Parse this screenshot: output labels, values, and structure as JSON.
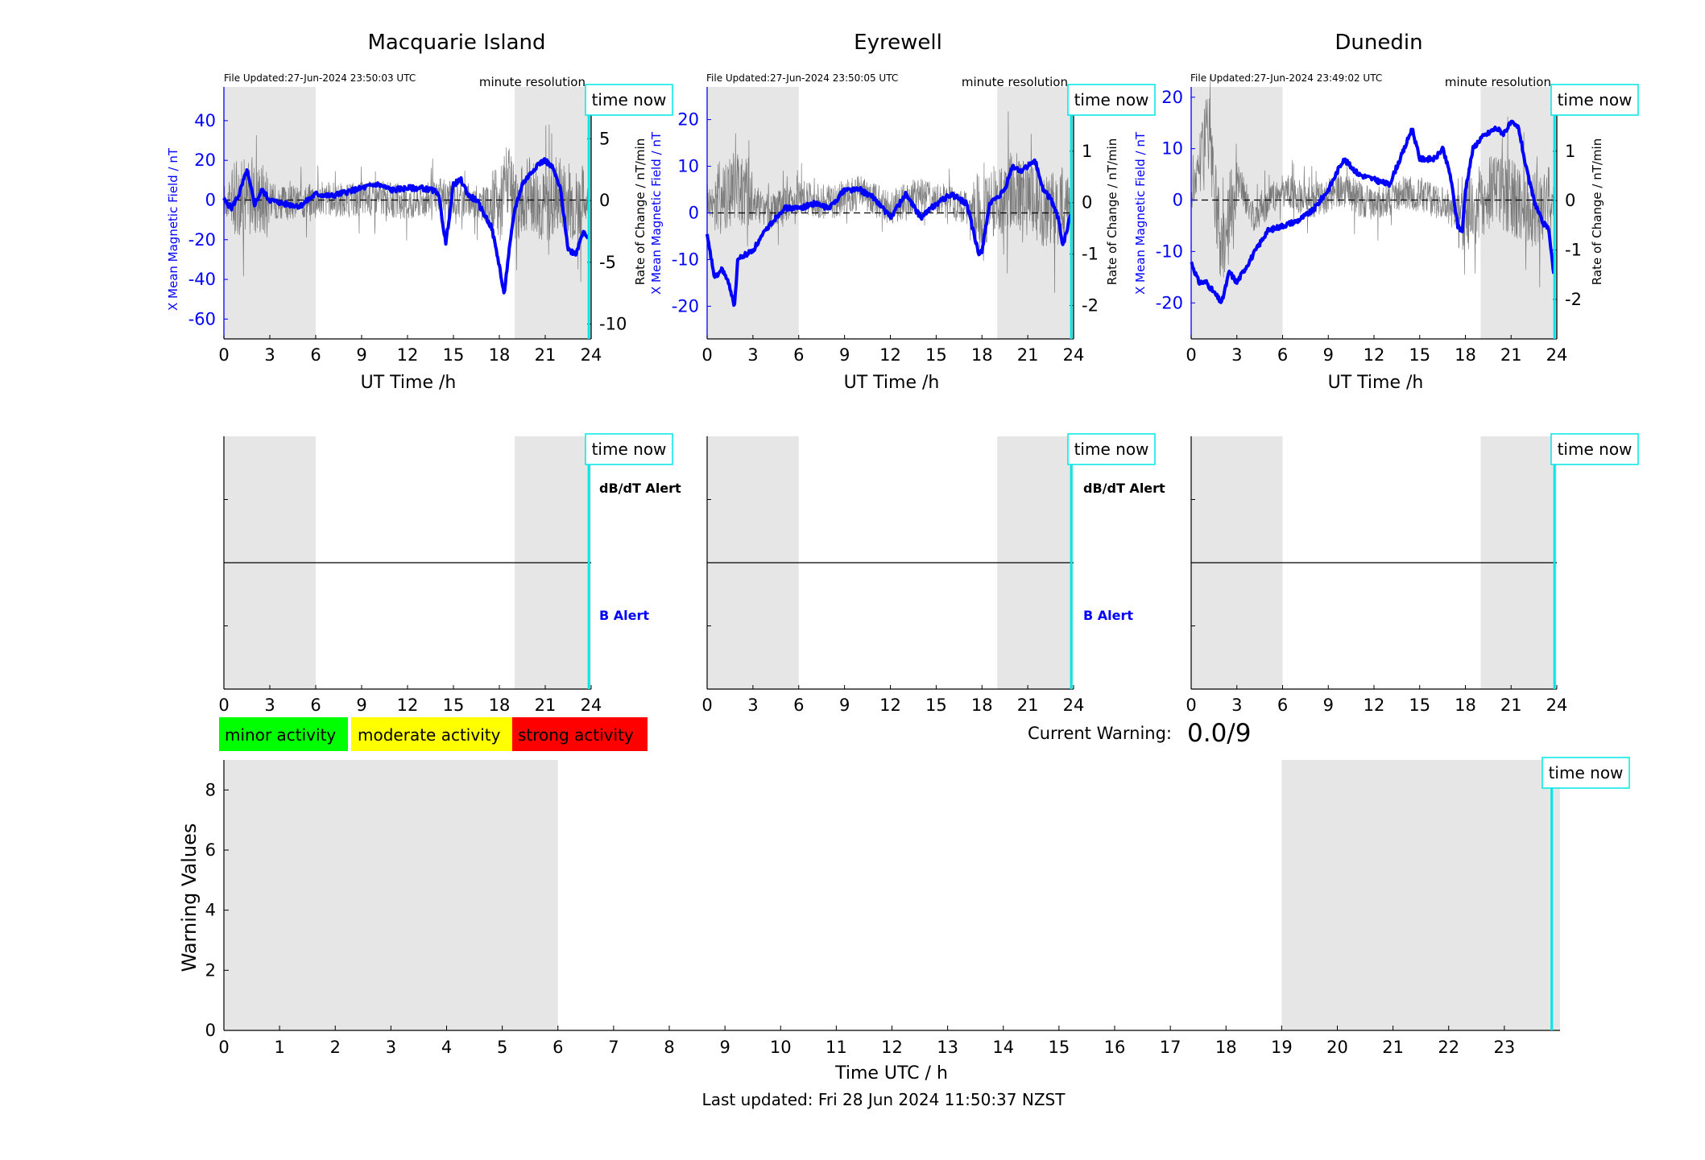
{
  "panels": [
    {
      "title": "Macquarie Island",
      "file_updated": "File Updated:27-Jun-2024 23:50:03 UTC",
      "resolution": "minute resolution",
      "time_now": "time now",
      "ylabel_left": "X Mean Magnetic Field / nT",
      "ylabel_right": "Rate of Change / nT/min",
      "xlabel": "UT Time /h",
      "alert_db": "dB/dT Alert",
      "alert_b": "B Alert"
    },
    {
      "title": "Eyrewell",
      "file_updated": "File Updated:27-Jun-2024 23:50:05 UTC",
      "resolution": "minute resolution",
      "time_now": "time now",
      "ylabel_left": "X Mean Magnetic Field / nT",
      "ylabel_right": "Rate of Change / nT/min",
      "xlabel": "UT Time /h",
      "alert_db": "dB/dT Alert",
      "alert_b": "B Alert"
    },
    {
      "title": "Dunedin",
      "file_updated": "File Updated:27-Jun-2024 23:49:02 UTC",
      "resolution": "minute resolution",
      "time_now": "time now",
      "ylabel_left": "X Mean Magnetic Field / nT",
      "ylabel_right": "Rate of Change / nT/min",
      "xlabel": "UT Time /h",
      "alert_db": "",
      "alert_b": ""
    }
  ],
  "legend": {
    "minor": "minor activity",
    "moderate": "moderate activity",
    "strong": "strong activity",
    "colors": {
      "minor": "#00ff00",
      "moderate": "#ffff00",
      "strong": "#ff0000"
    }
  },
  "current_warning": {
    "label": "Current Warning:",
    "value": "0.0/9"
  },
  "warning_chart": {
    "ylabel": "Warning Values",
    "xlabel": "Time UTC / h",
    "time_now": "time now"
  },
  "last_updated": "Last updated: Fri 28 Jun 2024 11:50:37 NZST",
  "colors": {
    "mag_line": "#0000ff",
    "roc_line": "#555555",
    "shade": "#e6e6e6",
    "time_now_line": "#00e5e5"
  },
  "chart_data": [
    {
      "type": "line",
      "title": "Macquarie Island",
      "xlabel": "UT Time /h",
      "ylabel": "X Mean Magnetic Field / nT",
      "y2label": "Rate of Change / nT/min",
      "xlim": [
        0,
        24
      ],
      "ylim": [
        -70,
        57
      ],
      "y2lim": [
        -11.2,
        9.2
      ],
      "xticks": [
        0,
        3,
        6,
        9,
        12,
        15,
        18,
        21,
        24
      ],
      "yticks": [
        -60,
        -40,
        -20,
        0,
        20,
        40
      ],
      "y2ticks": [
        -10,
        -5,
        0,
        5
      ],
      "shaded_ranges": [
        [
          0,
          6
        ],
        [
          19,
          24
        ]
      ],
      "time_now": 23.85,
      "series": [
        {
          "axis": "left",
          "x": [
            0,
            0.5,
            1,
            1.5,
            2,
            2.5,
            3,
            4,
            5,
            6,
            7,
            8,
            9,
            10,
            11,
            12,
            13,
            13.5,
            14,
            14.5,
            15,
            15.5,
            16,
            16.5,
            17,
            17.5,
            18,
            18.3,
            18.6,
            19,
            19.5,
            20,
            20.5,
            21,
            21.5,
            22,
            22.5,
            23,
            23.5,
            23.85
          ],
          "y": [
            0,
            -4,
            3,
            15,
            -2,
            5,
            0,
            -2,
            -3,
            3,
            2,
            4,
            6,
            8,
            5,
            6,
            6,
            5,
            4,
            -22,
            8,
            10,
            2,
            0,
            -7,
            -14,
            -33,
            -48,
            -28,
            -5,
            8,
            13,
            18,
            20,
            16,
            5,
            -25,
            -27,
            -15,
            -20
          ]
        },
        {
          "axis": "right",
          "name": "",
          "x": [
            0,
            2,
            4,
            6,
            8,
            10,
            12,
            14,
            16,
            18,
            18.5,
            19,
            20,
            21,
            22,
            23,
            23.85
          ],
          "y": [
            0,
            0.5,
            -0.3,
            0.2,
            0,
            0.3,
            -0.2,
            0.4,
            0,
            -0.5,
            2,
            -1,
            0.8,
            -0.6,
            0.5,
            -0.3,
            0
          ]
        }
      ]
    },
    {
      "type": "line",
      "title": "Eyrewell",
      "xlabel": "UT Time /h",
      "ylabel": "X Mean Magnetic Field / nT",
      "y2label": "Rate of Change / nT/min",
      "xlim": [
        0,
        24
      ],
      "ylim": [
        -27,
        27
      ],
      "y2lim": [
        -2.65,
        2.25
      ],
      "xticks": [
        0,
        3,
        6,
        9,
        12,
        15,
        18,
        21,
        24
      ],
      "yticks": [
        -20,
        -10,
        0,
        10,
        20
      ],
      "y2ticks": [
        -2,
        -1,
        0,
        1,
        2
      ],
      "shaded_ranges": [
        [
          0,
          6
        ],
        [
          19,
          24
        ]
      ],
      "time_now": 23.85,
      "series": [
        {
          "axis": "left",
          "x": [
            0,
            0.5,
            1,
            1.5,
            1.8,
            2,
            2.5,
            3,
            4,
            5,
            6,
            7,
            8,
            9,
            10,
            11,
            12,
            13,
            14,
            15,
            16,
            17,
            17.5,
            17.8,
            18,
            18.5,
            19,
            19.5,
            20,
            20.5,
            21,
            21.5,
            22,
            22.5,
            23,
            23.3,
            23.85
          ],
          "y": [
            -5,
            -14,
            -12,
            -16,
            -20,
            -10,
            -9,
            -8,
            -3,
            1,
            1,
            2,
            1,
            5,
            5,
            3,
            -1,
            4,
            -1,
            2,
            4,
            2,
            -5,
            -9,
            -8,
            2,
            3,
            5,
            10,
            9,
            10,
            11,
            5,
            3,
            -1,
            -7,
            0
          ]
        },
        {
          "axis": "right",
          "name": "",
          "x": [
            0,
            2,
            4,
            6,
            8,
            10,
            12,
            14,
            16,
            18,
            20,
            22,
            23.85
          ],
          "y": [
            0,
            0.3,
            -0.2,
            0.1,
            0,
            0.2,
            -0.1,
            0.2,
            0,
            -0.2,
            0.3,
            -0.2,
            0
          ]
        }
      ]
    },
    {
      "type": "line",
      "title": "Dunedin",
      "xlabel": "UT Time /h",
      "ylabel": "X Mean Magnetic Field / nT",
      "y2label": "Rate of Change / nT/min",
      "xlim": [
        0,
        24
      ],
      "ylim": [
        -27,
        22
      ],
      "y2lim": [
        -2.8,
        2.3
      ],
      "xticks": [
        0,
        3,
        6,
        9,
        12,
        15,
        18,
        21,
        24
      ],
      "yticks": [
        -20,
        -10,
        0,
        10,
        20
      ],
      "y2ticks": [
        -2,
        -1,
        0,
        1,
        2
      ],
      "shaded_ranges": [
        [
          0,
          6
        ],
        [
          19,
          24
        ]
      ],
      "time_now": 23.85,
      "series": [
        {
          "axis": "left",
          "x": [
            0,
            0.5,
            1,
            1.5,
            2,
            2.5,
            3,
            4,
            5,
            6,
            7,
            8,
            9,
            10,
            11,
            12,
            13,
            14,
            14.5,
            15,
            16,
            16.5,
            17,
            17.5,
            17.8,
            18,
            18.5,
            19,
            20,
            20.5,
            21,
            21.5,
            22,
            22.5,
            23,
            23.5,
            23.85
          ],
          "y": [
            -12,
            -16,
            -16,
            -18,
            -20,
            -14,
            -16,
            -11,
            -6,
            -5,
            -4,
            -2,
            2,
            8,
            5,
            4,
            3,
            10,
            14,
            8,
            8,
            10,
            5,
            -5,
            -6,
            2,
            10,
            12,
            14,
            13,
            15,
            14,
            6,
            0,
            -4,
            -6,
            -16
          ]
        },
        {
          "axis": "right",
          "name": "",
          "x": [
            0,
            1,
            2,
            3,
            4,
            6,
            8,
            10,
            12,
            14,
            16,
            18,
            20,
            22,
            23.85
          ],
          "y": [
            0,
            1.5,
            -1,
            0.5,
            -0.3,
            0.2,
            0,
            0.2,
            -0.1,
            0.2,
            0,
            -0.3,
            0.3,
            -0.2,
            0
          ]
        }
      ]
    },
    {
      "type": "line",
      "title": "",
      "xlabel": "Time UTC / h",
      "ylabel": "Warning Values",
      "xlim": [
        0,
        24
      ],
      "ylim": [
        0,
        9
      ],
      "xticks": [
        0,
        1,
        2,
        3,
        4,
        5,
        6,
        7,
        8,
        9,
        10,
        11,
        12,
        13,
        14,
        15,
        16,
        17,
        18,
        19,
        20,
        21,
        22,
        23
      ],
      "yticks": [
        0,
        2,
        4,
        6,
        8
      ],
      "shaded_ranges": [
        [
          0,
          6
        ],
        [
          19,
          24
        ]
      ],
      "time_now": 23.85,
      "series": []
    }
  ]
}
